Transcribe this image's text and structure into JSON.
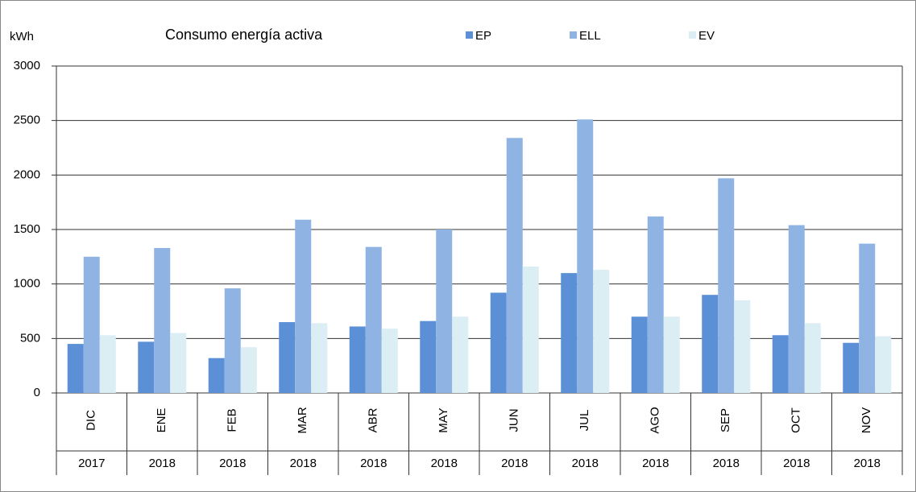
{
  "chart_data": {
    "type": "bar",
    "title": "Consumo energía activa",
    "y_label": "kWh",
    "categories": [
      "DIC",
      "ENE",
      "FEB",
      "MAR",
      "ABR",
      "MAY",
      "JUN",
      "JUL",
      "AGO",
      "SEP",
      "OCT",
      "NOV"
    ],
    "category_groups": [
      "2017",
      "2018",
      "2018",
      "2018",
      "2018",
      "2018",
      "2018",
      "2018",
      "2018",
      "2018",
      "2018",
      "2018"
    ],
    "series": [
      {
        "name": "EP",
        "color": "#5b8fd6",
        "values": [
          450,
          470,
          320,
          650,
          610,
          660,
          920,
          1100,
          700,
          900,
          530,
          460
        ]
      },
      {
        "name": "ELL",
        "color": "#8fb4e3",
        "values": [
          1250,
          1330,
          960,
          1590,
          1340,
          1500,
          2340,
          2510,
          1620,
          1970,
          1540,
          1370
        ]
      },
      {
        "name": "EV",
        "color": "#dbeef4",
        "values": [
          530,
          550,
          420,
          640,
          590,
          700,
          1160,
          1130,
          700,
          850,
          640,
          520
        ]
      }
    ],
    "ylim": [
      0,
      3000
    ],
    "yticks": [
      0,
      500,
      1000,
      1500,
      2000,
      2500,
      3000
    ],
    "grid": true,
    "legend": "top"
  }
}
